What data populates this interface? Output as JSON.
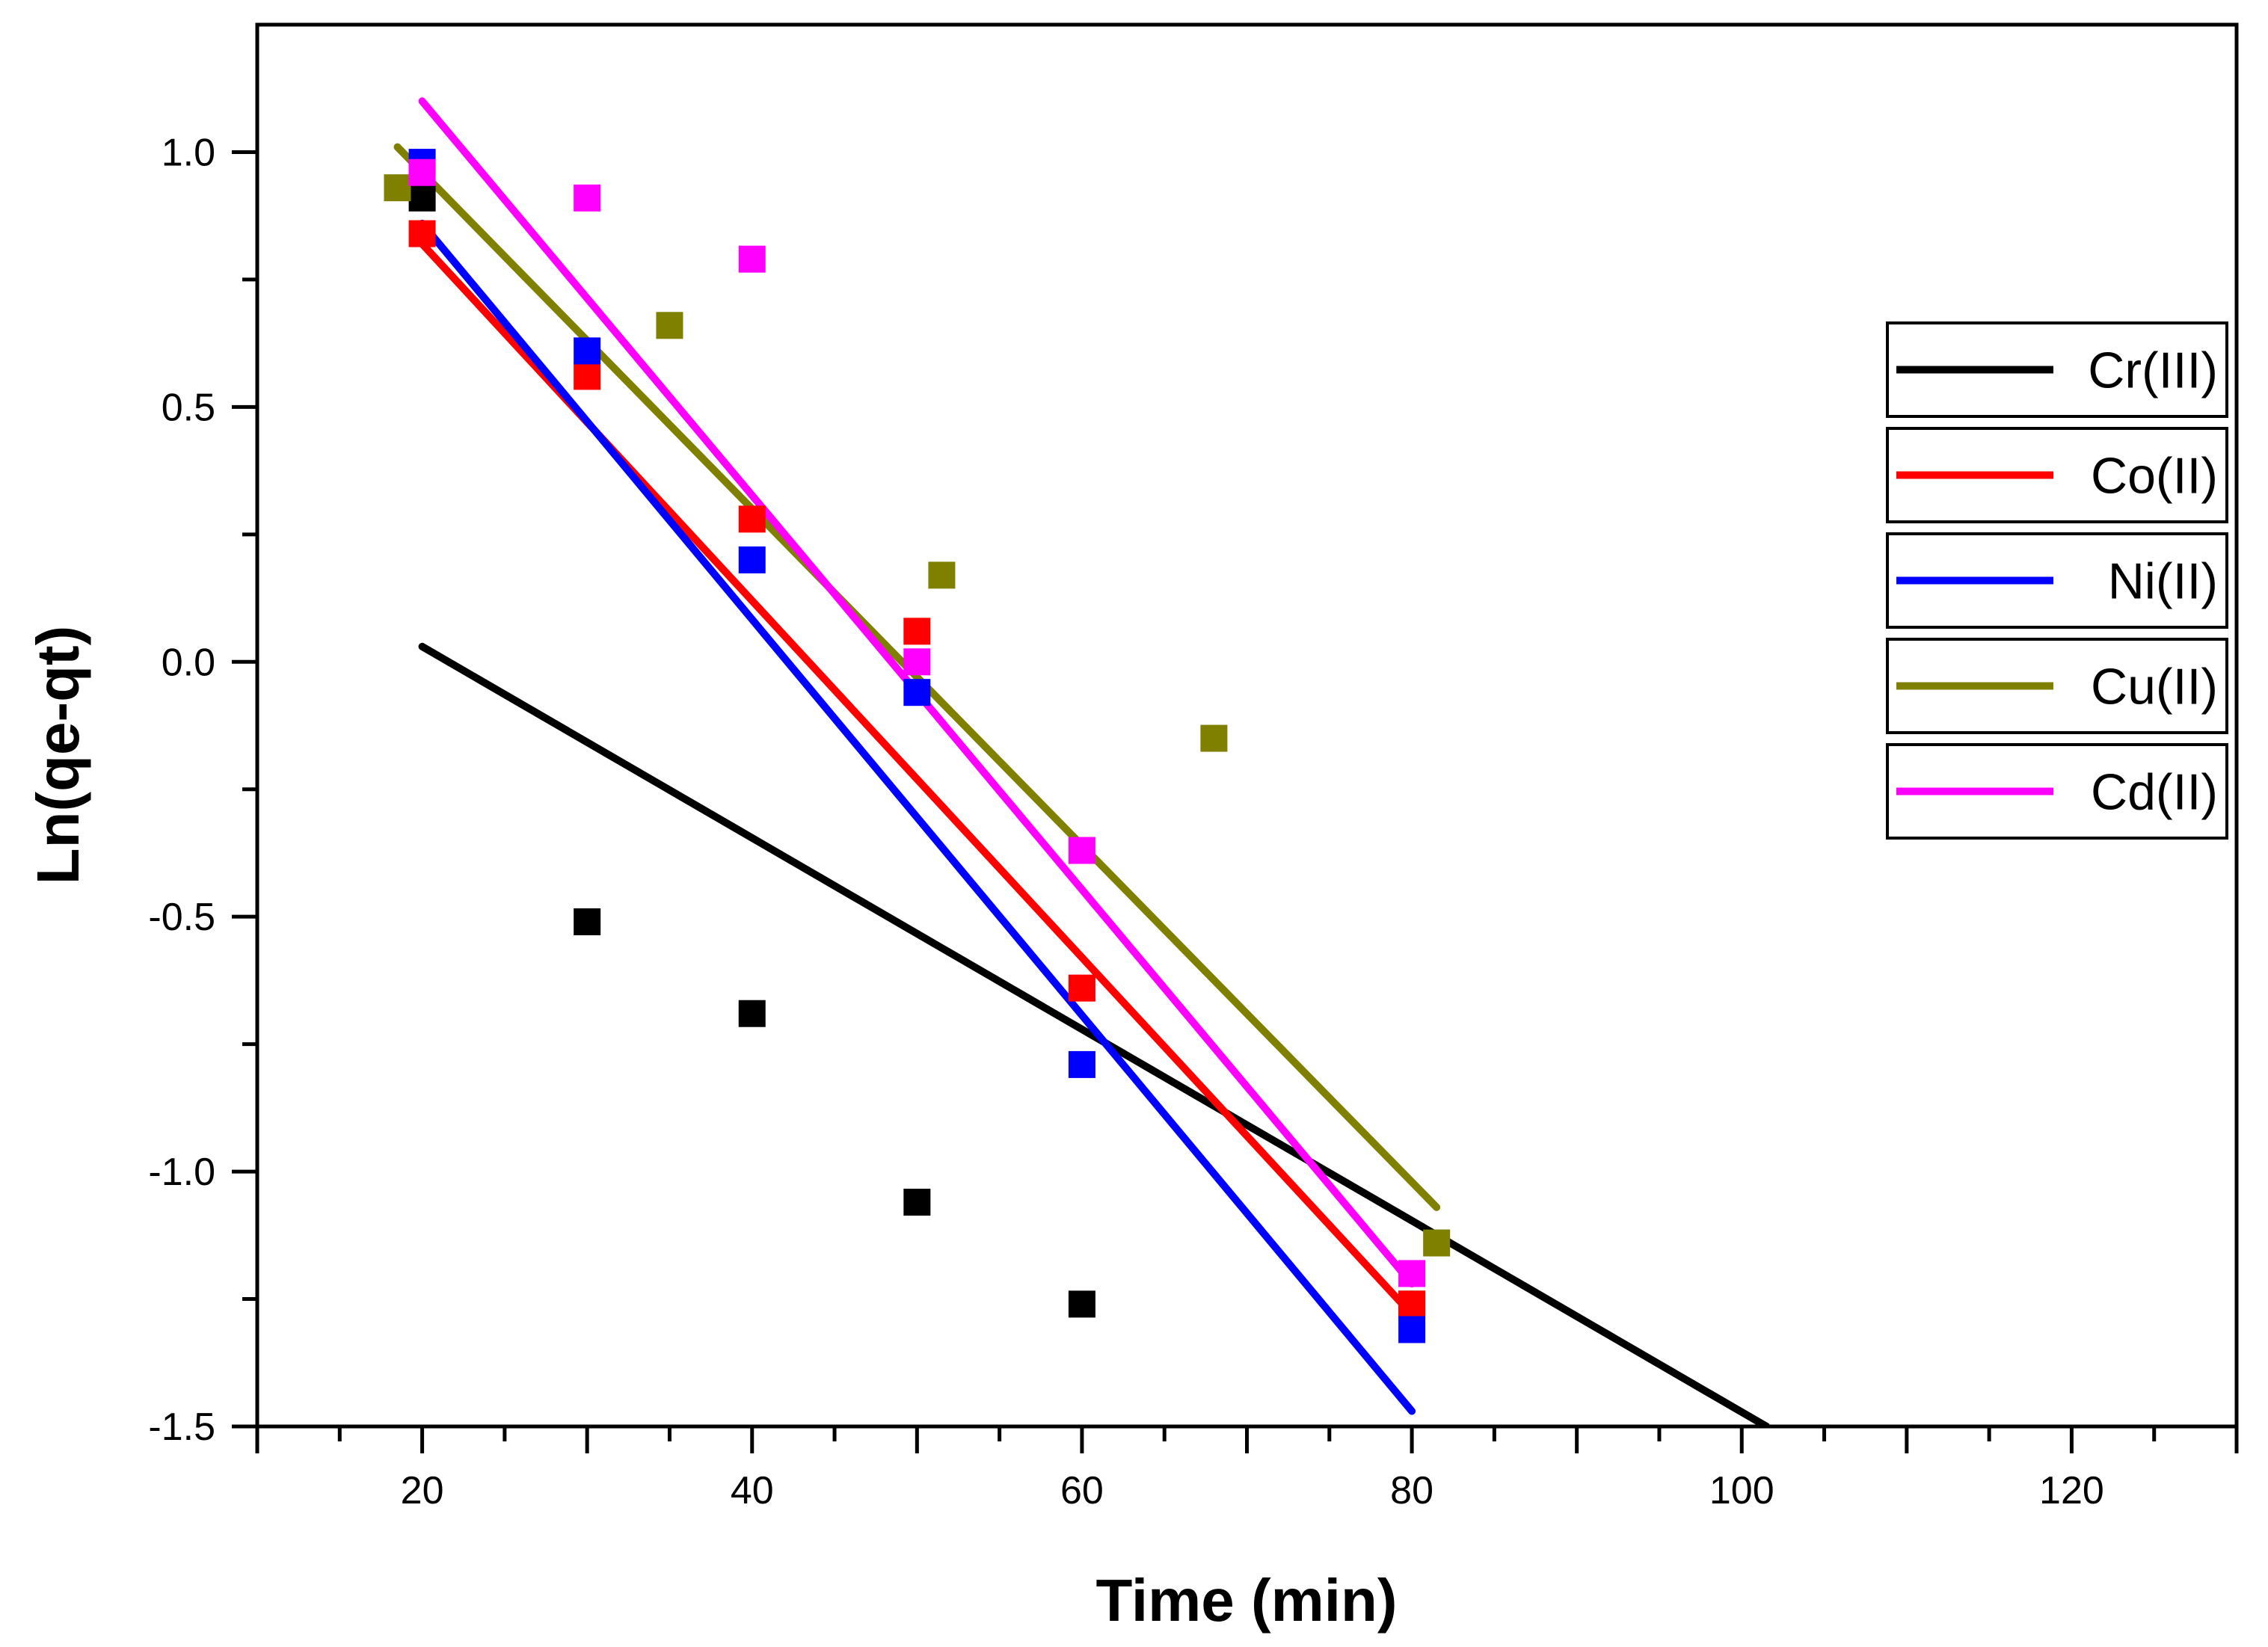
{
  "chart_data": {
    "type": "scatter",
    "title": "",
    "xlabel": "Time (min)",
    "ylabel": "Ln(qe-qt)",
    "xlim": [
      10,
      130
    ],
    "ylim": [
      -1.5,
      1.25
    ],
    "xticks": [
      20,
      40,
      60,
      80,
      100,
      120
    ],
    "xtick_labels": [
      "20",
      "40",
      "60",
      "80",
      "100",
      "120"
    ],
    "yticks": [
      -1.5,
      -1.0,
      -0.5,
      0.0,
      0.5,
      1.0
    ],
    "ytick_labels": [
      "-1.5",
      "-1.0",
      "-0.5",
      "0.0",
      "0.5",
      "1.0"
    ],
    "legend_position": "right",
    "series": [
      {
        "name": "Cr(III)",
        "color": "#000000",
        "points": [
          [
            20,
            0.91
          ],
          [
            30,
            -0.51
          ],
          [
            40,
            -0.69
          ],
          [
            50,
            -1.06
          ],
          [
            60,
            -1.26
          ],
          [
            80,
            -1.26
          ]
        ],
        "fit_line": [
          [
            20,
            0.03
          ],
          [
            101.5,
            -1.5
          ]
        ]
      },
      {
        "name": "Co(II)",
        "color": "#ff0000",
        "points": [
          [
            20,
            0.84
          ],
          [
            30,
            0.56
          ],
          [
            40,
            0.28
          ],
          [
            50,
            0.06
          ],
          [
            60,
            -0.64
          ],
          [
            80,
            -1.26
          ]
        ],
        "fit_line": [
          [
            20,
            0.82
          ],
          [
            80,
            -1.28
          ]
        ]
      },
      {
        "name": "Ni(II)",
        "color": "#0000ff",
        "points": [
          [
            20,
            0.98
          ],
          [
            30,
            0.61
          ],
          [
            40,
            0.2
          ],
          [
            50,
            -0.06
          ],
          [
            60,
            -0.79
          ],
          [
            80,
            -1.31
          ]
        ],
        "fit_line": [
          [
            20,
            0.86
          ],
          [
            80,
            -1.47
          ]
        ]
      },
      {
        "name": "Cu(II)",
        "color": "#808000",
        "points": [
          [
            18.5,
            0.93
          ],
          [
            35,
            0.66
          ],
          [
            51.5,
            0.17
          ],
          [
            68,
            -0.15
          ],
          [
            81.5,
            -1.14
          ]
        ],
        "fit_line": [
          [
            18.5,
            1.01
          ],
          [
            81.5,
            -1.07
          ]
        ]
      },
      {
        "name": "Cd(II)",
        "color": "#ff00ff",
        "points": [
          [
            20,
            0.96
          ],
          [
            30,
            0.91
          ],
          [
            40,
            0.79
          ],
          [
            50,
            0.0
          ],
          [
            60,
            -0.37
          ],
          [
            80,
            -1.2
          ]
        ],
        "fit_line": [
          [
            20,
            1.1
          ],
          [
            80,
            -1.22
          ]
        ]
      }
    ]
  }
}
